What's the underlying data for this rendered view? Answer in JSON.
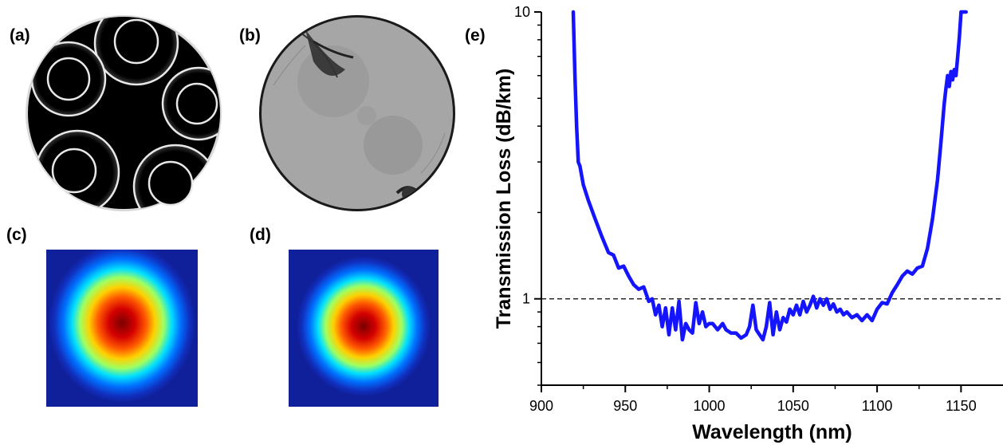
{
  "figure": {
    "panels": [
      {
        "label": "(a)",
        "content": "SEM cross-section of nested antiresonant hollow-core fiber"
      },
      {
        "label": "(b)",
        "content": "Cleaved fiber end face"
      },
      {
        "label": "(c)",
        "content": "Near-field mode profile"
      },
      {
        "label": "(d)",
        "content": "Simulated mode profile"
      },
      {
        "label": "(e)",
        "content": "Transmission loss spectrum"
      }
    ]
  },
  "colors": {
    "curve": "#1414ff",
    "reference_line": "#000000",
    "fiber_background": "#000000",
    "fiber_rings": "#e8e8e8",
    "mode_background": "#10209a"
  },
  "chart_data": {
    "type": "line",
    "title": "",
    "xlabel": "Wavelength (nm)",
    "ylabel": "Transmission Loss (dB/km)",
    "xlim": [
      900,
      1175
    ],
    "ylim": [
      0.5,
      10
    ],
    "yscale": "log",
    "xticks": [
      900,
      950,
      1000,
      1050,
      1100,
      1150
    ],
    "yticks": [
      1,
      10
    ],
    "reference_line": {
      "y": 1,
      "style": "dashed"
    },
    "grid": false,
    "series": [
      {
        "x": [
          919,
          920,
          921,
          922,
          923,
          925,
          928,
          932,
          936,
          940,
          943,
          946,
          949,
          952,
          955,
          958,
          961,
          964,
          966,
          968,
          970,
          972,
          974,
          976,
          978,
          980,
          982,
          984,
          986,
          988,
          990,
          992,
          994,
          996,
          998,
          1000,
          1002,
          1005,
          1008,
          1010,
          1013,
          1016,
          1019,
          1022,
          1024,
          1026,
          1028,
          1030,
          1032,
          1034,
          1036,
          1038,
          1040,
          1042,
          1044,
          1046,
          1048,
          1050,
          1052,
          1054,
          1056,
          1058,
          1060,
          1062,
          1064,
          1066,
          1068,
          1070,
          1072,
          1074,
          1076,
          1078,
          1080,
          1082,
          1085,
          1088,
          1091,
          1094,
          1097,
          1100,
          1103,
          1106,
          1109,
          1112,
          1115,
          1118,
          1121,
          1124,
          1127,
          1130,
          1133,
          1136,
          1138,
          1140,
          1141,
          1142,
          1143,
          1144,
          1145,
          1146,
          1147,
          1148,
          1149,
          1150,
          1151,
          1152,
          1153
        ],
        "y": [
          10,
          6.0,
          4.0,
          3.0,
          2.9,
          2.5,
          2.2,
          1.9,
          1.65,
          1.45,
          1.42,
          1.28,
          1.3,
          1.2,
          1.12,
          1.08,
          1.1,
          0.98,
          1.0,
          0.88,
          0.95,
          0.8,
          0.93,
          0.75,
          0.93,
          0.78,
          0.98,
          0.72,
          0.82,
          0.78,
          0.76,
          0.97,
          0.82,
          0.9,
          0.8,
          0.82,
          0.82,
          0.78,
          0.82,
          0.78,
          0.76,
          0.76,
          0.73,
          0.75,
          0.8,
          0.95,
          0.78,
          0.75,
          0.72,
          0.8,
          0.97,
          0.75,
          0.9,
          0.78,
          0.86,
          0.83,
          0.92,
          0.88,
          0.95,
          0.88,
          0.98,
          0.9,
          0.95,
          1.02,
          0.93,
          1.0,
          0.95,
          1.0,
          0.92,
          0.96,
          0.9,
          0.92,
          0.88,
          0.9,
          0.86,
          0.88,
          0.84,
          0.88,
          0.84,
          0.92,
          0.97,
          0.96,
          1.05,
          1.12,
          1.2,
          1.25,
          1.22,
          1.28,
          1.3,
          1.5,
          1.9,
          2.6,
          3.5,
          4.8,
          5.4,
          6.0,
          5.5,
          6.2,
          5.8,
          6.3,
          6.0,
          7.0,
          8.2,
          10,
          10,
          10,
          10
        ]
      }
    ]
  }
}
